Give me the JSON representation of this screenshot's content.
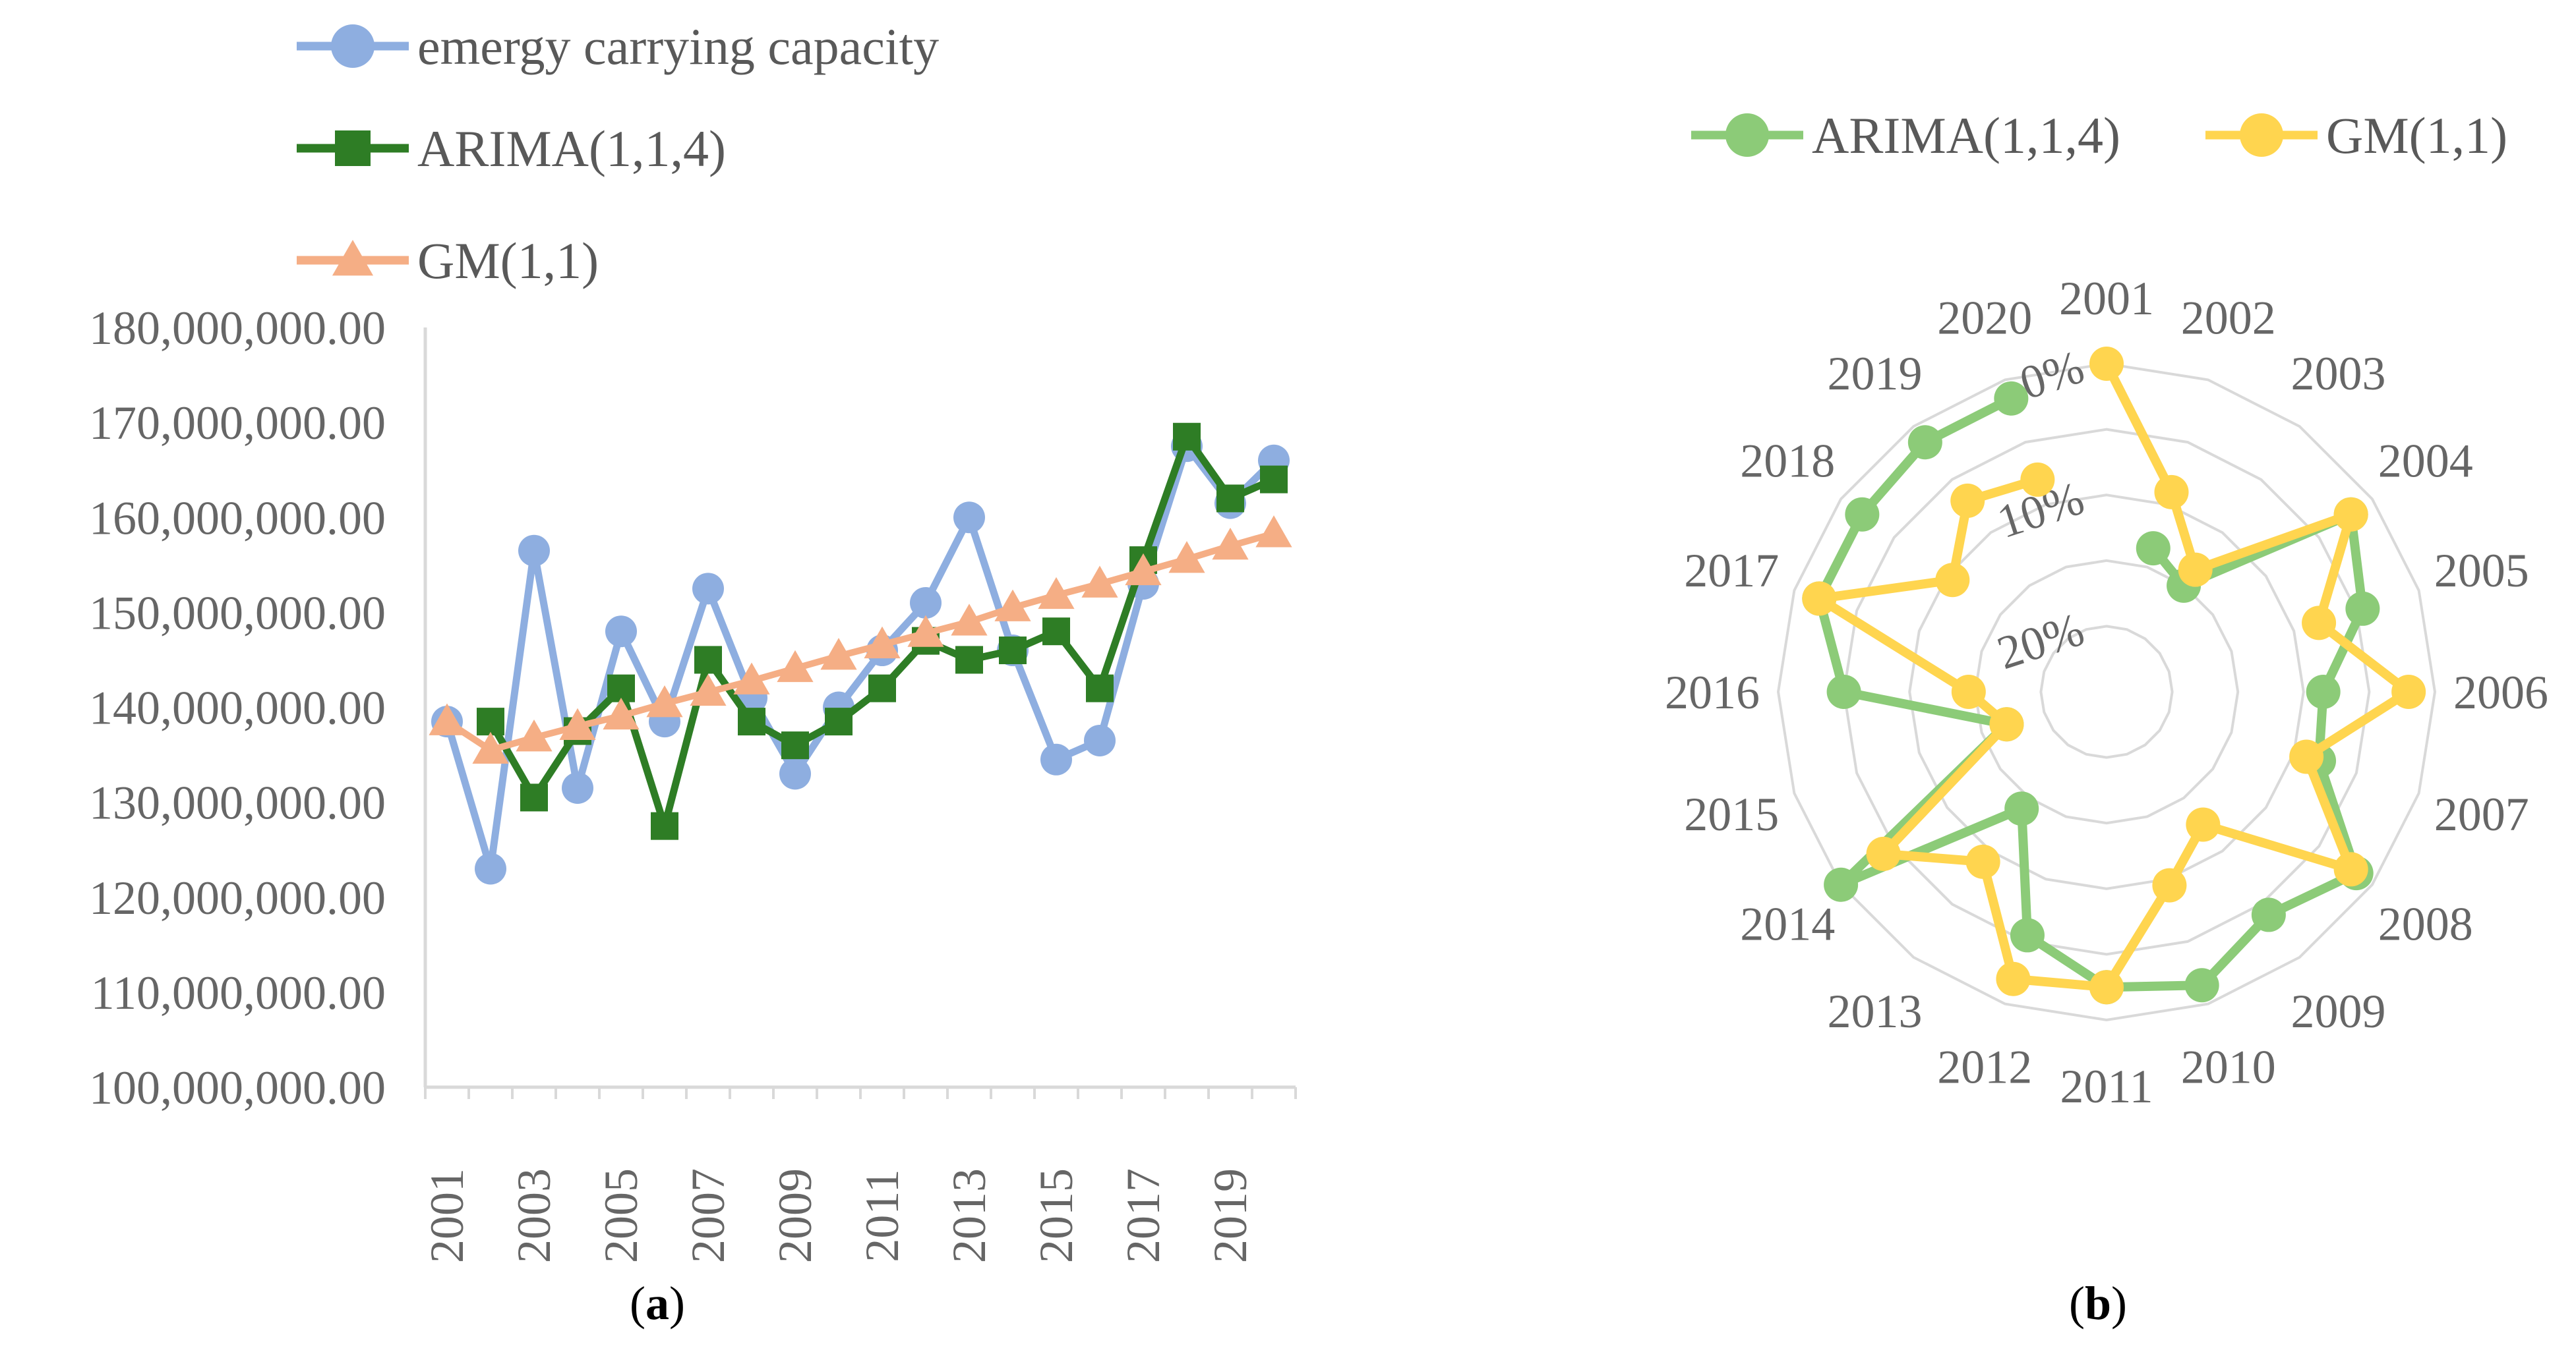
{
  "chart_data": [
    {
      "panel": "a",
      "caption_text": "a",
      "type": "line",
      "title": "",
      "xlabel": "",
      "ylabel": "",
      "categories": [
        "2001",
        "2002",
        "2003",
        "2004",
        "2005",
        "2006",
        "2007",
        "2008",
        "2009",
        "2010",
        "2011",
        "2012",
        "2013",
        "2014",
        "2015",
        "2016",
        "2017",
        "2018",
        "2019",
        "2020"
      ],
      "x_tick_labels": [
        "2001",
        "2003",
        "2005",
        "2007",
        "2009",
        "2011",
        "2013",
        "2015",
        "2017",
        "2019"
      ],
      "y_tick_labels": [
        "100,000,000.00",
        "110,000,000.00",
        "120,000,000.00",
        "130,000,000.00",
        "140,000,000.00",
        "150,000,000.00",
        "160,000,000.00",
        "170,000,000.00",
        "180,000,000.00"
      ],
      "ylim": [
        100000000,
        180000000
      ],
      "ystep": 10000000,
      "legend_position": "top-left",
      "series": [
        {
          "name": "emergy carrying capacity",
          "color": "#8EAEE0",
          "marker": "circle",
          "values": [
            138500000,
            123000000,
            156500000,
            131500000,
            148000000,
            138500000,
            152500000,
            141000000,
            133000000,
            140000000,
            146000000,
            151000000,
            160000000,
            146000000,
            134500000,
            136500000,
            153000000,
            167500000,
            161500000,
            166000000
          ]
        },
        {
          "name": "ARIMA(1,1,4)",
          "color": "#2E7D25",
          "marker": "square",
          "values": [
            null,
            138500000,
            130500000,
            137500000,
            142000000,
            127500000,
            145000000,
            138500000,
            136000000,
            138500000,
            142000000,
            147000000,
            145000000,
            146000000,
            148000000,
            142000000,
            155500000,
            168500000,
            162000000,
            164000000
          ]
        },
        {
          "name": "GM(1,1)",
          "color": "#F5AE85",
          "marker": "triangle",
          "values": [
            138500000,
            135500000,
            136800000,
            138000000,
            139100000,
            140400000,
            141600000,
            142800000,
            144100000,
            145400000,
            146600000,
            147800000,
            149000000,
            150500000,
            151800000,
            153000000,
            154300000,
            155600000,
            157000000,
            158300000
          ]
        }
      ]
    },
    {
      "panel": "b",
      "caption_text": "b",
      "type": "radar",
      "title": "",
      "categories": [
        "2001",
        "2002",
        "2003",
        "2004",
        "2005",
        "2006",
        "2007",
        "2008",
        "2009",
        "2010",
        "2011",
        "2012",
        "2013",
        "2014",
        "2015",
        "2016",
        "2017",
        "2018",
        "2019",
        "2020"
      ],
      "radial_tick_labels": [
        "0%",
        "10%",
        "20%"
      ],
      "radial_axis_reversed": true,
      "rlim": [
        0,
        0.25
      ],
      "legend_position": "top-right",
      "series": [
        {
          "name": "ARIMA(1,1,4)",
          "color": "#8CCB78",
          "values": [
            null,
            0.135,
            0.15,
            0.02,
            0.045,
            0.085,
            0.08,
            0.015,
            0.04,
            0.015,
            0.025,
            0.055,
            0.14,
            0.0,
            0.17,
            0.05,
            0.02,
            0.02,
            0.015,
            0.015
          ]
        },
        {
          "name": "GM(1,1)",
          "color": "#FFD54F",
          "values": [
            0.0,
            0.09,
            0.135,
            0.02,
            0.08,
            0.02,
            0.09,
            0.02,
            0.125,
            0.095,
            0.025,
            0.02,
            0.09,
            0.04,
            0.17,
            0.145,
            0.02,
            0.105,
            0.07,
            0.08
          ]
        }
      ]
    }
  ]
}
